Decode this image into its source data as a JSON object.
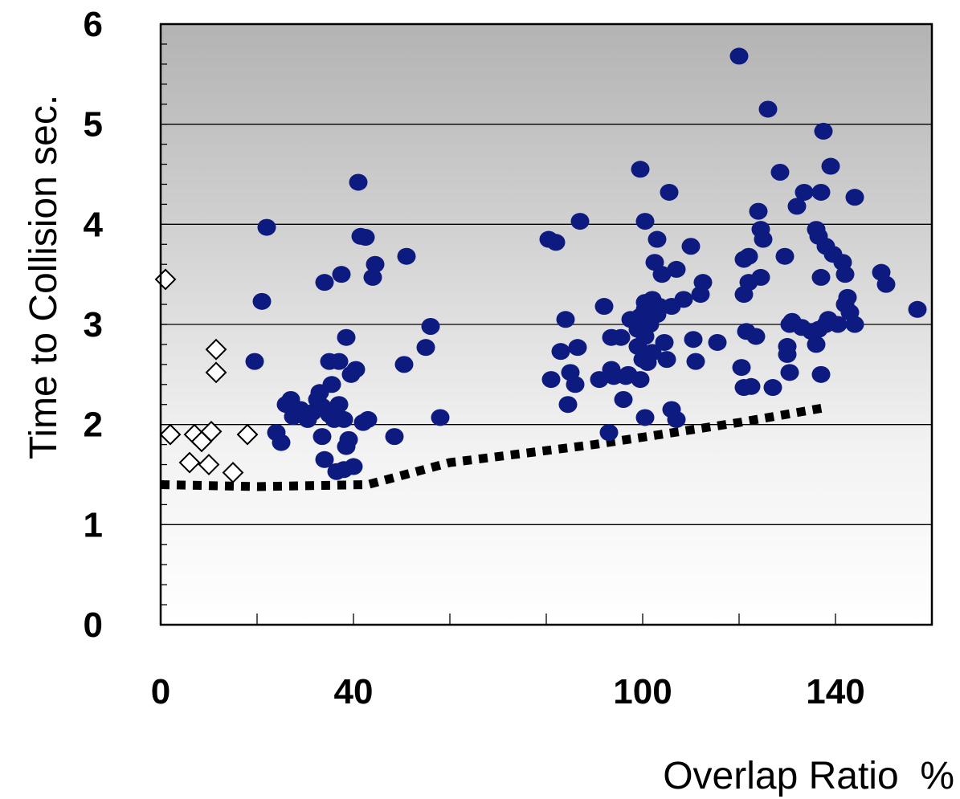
{
  "chart_data": {
    "type": "scatter",
    "title": "",
    "xlabel": "Overlap Ratio  %",
    "ylabel": "Time to Collision  sec.",
    "xlim": [
      0,
      160
    ],
    "ylim": [
      0,
      6
    ],
    "xticks": [
      0,
      40,
      100,
      140
    ],
    "yticks": [
      0,
      1,
      2,
      3,
      4,
      5,
      6
    ],
    "grid": "horizontal",
    "legend": "none",
    "background": "vertical gradient, dark grey at top to white at bottom",
    "colors": {
      "filled": "#0d1a80",
      "open_stroke": "#000000",
      "line": "#000000",
      "grid": "#000000"
    },
    "series": [
      {
        "marker": "open-diamond",
        "points": [
          [
            1.0,
            3.45
          ],
          [
            2.0,
            1.9
          ],
          [
            6.0,
            1.62
          ],
          [
            7.0,
            1.9
          ],
          [
            8.5,
            1.83
          ],
          [
            10.0,
            1.6
          ],
          [
            10.5,
            1.93
          ],
          [
            11.5,
            2.75
          ],
          [
            11.5,
            2.52
          ],
          [
            15.0,
            1.52
          ],
          [
            18.0,
            1.9
          ]
        ]
      },
      {
        "marker": "filled-circle",
        "points": [
          [
            19.5,
            2.63
          ],
          [
            21.0,
            3.23
          ],
          [
            22.0,
            3.97
          ],
          [
            24.0,
            1.92
          ],
          [
            25.0,
            1.82
          ],
          [
            26.0,
            2.2
          ],
          [
            27.0,
            2.25
          ],
          [
            27.5,
            2.08
          ],
          [
            29.0,
            2.15
          ],
          [
            30.5,
            2.05
          ],
          [
            31.5,
            2.12
          ],
          [
            32.5,
            2.25
          ],
          [
            33.0,
            2.32
          ],
          [
            33.5,
            2.18
          ],
          [
            33.5,
            1.88
          ],
          [
            34.0,
            3.42
          ],
          [
            34.0,
            1.65
          ],
          [
            35.0,
            2.63
          ],
          [
            35.0,
            2.1
          ],
          [
            35.5,
            2.4
          ],
          [
            36.0,
            2.05
          ],
          [
            36.5,
            1.53
          ],
          [
            37.0,
            2.63
          ],
          [
            37.0,
            2.2
          ],
          [
            37.5,
            3.5
          ],
          [
            38.0,
            1.55
          ],
          [
            38.0,
            2.05
          ],
          [
            38.5,
            2.87
          ],
          [
            38.5,
            1.78
          ],
          [
            39.0,
            1.85
          ],
          [
            39.5,
            2.5
          ],
          [
            40.0,
            1.58
          ],
          [
            40.5,
            2.55
          ],
          [
            41.0,
            4.42
          ],
          [
            41.5,
            3.88
          ],
          [
            42.0,
            2.02
          ],
          [
            42.5,
            3.87
          ],
          [
            43.0,
            2.05
          ],
          [
            44.0,
            3.47
          ],
          [
            44.5,
            3.6
          ],
          [
            48.5,
            1.88
          ],
          [
            50.5,
            2.6
          ],
          [
            51.0,
            3.68
          ],
          [
            55.0,
            2.77
          ],
          [
            56.0,
            2.98
          ],
          [
            58.0,
            2.07
          ],
          [
            80.5,
            3.85
          ],
          [
            81.0,
            2.45
          ],
          [
            82.0,
            3.82
          ],
          [
            83.0,
            2.73
          ],
          [
            84.0,
            3.05
          ],
          [
            84.5,
            2.2
          ],
          [
            85.0,
            2.52
          ],
          [
            86.0,
            2.4
          ],
          [
            86.5,
            2.77
          ],
          [
            87.0,
            4.03
          ],
          [
            91.0,
            2.45
          ],
          [
            92.0,
            3.18
          ],
          [
            93.0,
            1.92
          ],
          [
            93.5,
            2.55
          ],
          [
            93.5,
            2.87
          ],
          [
            94.0,
            2.48
          ],
          [
            95.5,
            2.87
          ],
          [
            96.0,
            2.25
          ],
          [
            96.5,
            2.48
          ],
          [
            97.0,
            2.5
          ],
          [
            97.5,
            3.05
          ],
          [
            99.0,
            2.95
          ],
          [
            99.0,
            2.78
          ],
          [
            99.5,
            3.08
          ],
          [
            99.5,
            4.55
          ],
          [
            99.5,
            2.45
          ],
          [
            100.0,
            2.65
          ],
          [
            100.5,
            2.07
          ],
          [
            100.5,
            3.22
          ],
          [
            100.5,
            2.88
          ],
          [
            100.5,
            3.15
          ],
          [
            100.5,
            4.03
          ],
          [
            101.0,
            2.62
          ],
          [
            101.5,
            3.0
          ],
          [
            102.0,
            3.25
          ],
          [
            102.0,
            2.72
          ],
          [
            102.5,
            3.62
          ],
          [
            103.0,
            3.1
          ],
          [
            103.0,
            3.85
          ],
          [
            103.5,
            3.18
          ],
          [
            104.0,
            3.5
          ],
          [
            104.5,
            2.82
          ],
          [
            105.0,
            2.65
          ],
          [
            105.5,
            4.32
          ],
          [
            106.0,
            2.15
          ],
          [
            106.0,
            3.18
          ],
          [
            107.0,
            3.55
          ],
          [
            107.0,
            2.05
          ],
          [
            108.5,
            3.25
          ],
          [
            110.0,
            3.78
          ],
          [
            110.5,
            2.85
          ],
          [
            111.0,
            2.63
          ],
          [
            112.0,
            3.3
          ],
          [
            112.5,
            3.42
          ],
          [
            115.5,
            2.82
          ],
          [
            120.0,
            5.68
          ],
          [
            120.5,
            2.57
          ],
          [
            121.0,
            3.65
          ],
          [
            121.0,
            2.37
          ],
          [
            121.0,
            3.3
          ],
          [
            121.5,
            2.93
          ],
          [
            122.0,
            3.68
          ],
          [
            122.0,
            3.42
          ],
          [
            122.5,
            2.38
          ],
          [
            123.5,
            2.88
          ],
          [
            124.0,
            4.13
          ],
          [
            124.5,
            3.95
          ],
          [
            124.5,
            3.47
          ],
          [
            125.0,
            3.85
          ],
          [
            126.0,
            5.15
          ],
          [
            127.0,
            2.37
          ],
          [
            128.5,
            4.52
          ],
          [
            129.5,
            3.68
          ],
          [
            130.0,
            2.78
          ],
          [
            130.0,
            2.7
          ],
          [
            130.5,
            2.52
          ],
          [
            130.5,
            3.0
          ],
          [
            131.0,
            3.03
          ],
          [
            132.0,
            4.18
          ],
          [
            133.0,
            2.97
          ],
          [
            133.5,
            4.32
          ],
          [
            135.0,
            2.93
          ],
          [
            136.0,
            3.95
          ],
          [
            136.0,
            2.8
          ],
          [
            136.5,
            3.88
          ],
          [
            136.5,
            2.95
          ],
          [
            137.0,
            4.32
          ],
          [
            137.0,
            2.5
          ],
          [
            137.0,
            3.47
          ],
          [
            137.5,
            4.93
          ],
          [
            138.0,
            3.0
          ],
          [
            138.0,
            3.78
          ],
          [
            138.5,
            3.05
          ],
          [
            139.0,
            4.58
          ],
          [
            139.5,
            3.7
          ],
          [
            140.5,
            3.0
          ],
          [
            141.5,
            3.62
          ],
          [
            142.0,
            3.5
          ],
          [
            142.0,
            3.2
          ],
          [
            142.5,
            3.27
          ],
          [
            143.0,
            3.12
          ],
          [
            144.0,
            3.0
          ],
          [
            144.0,
            4.27
          ],
          [
            149.5,
            3.52
          ],
          [
            150.5,
            3.4
          ],
          [
            157.0,
            3.15
          ]
        ]
      },
      {
        "marker": "dotted-line",
        "points": [
          [
            0,
            1.4
          ],
          [
            20,
            1.38
          ],
          [
            43,
            1.4
          ],
          [
            60,
            1.62
          ],
          [
            90,
            1.8
          ],
          [
            120,
            2.02
          ],
          [
            138,
            2.17
          ]
        ]
      }
    ]
  }
}
